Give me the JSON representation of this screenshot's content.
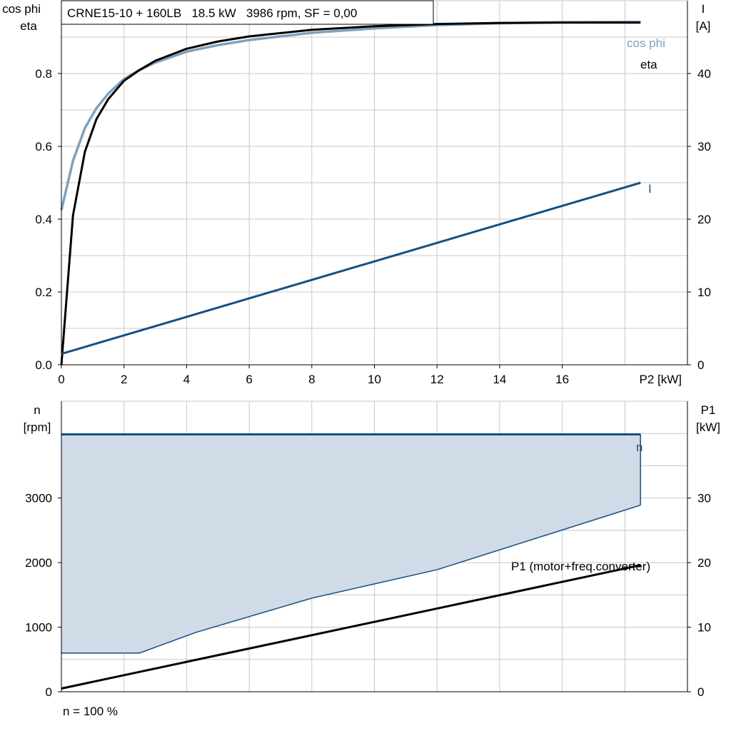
{
  "title": "CRNE15-10 + 160LB   18.5 kW   3986 rpm, SF = 0,00",
  "footer_note": "n = 100 %",
  "colors": {
    "eta": "#000000",
    "cos_phi": "#7ea1be",
    "current": "#174f82",
    "speed": "#174f82",
    "speed_fill": "#d0dbe7",
    "p1": "#000000",
    "grid": "#c8c8c8"
  },
  "chart_data": [
    {
      "type": "line",
      "xlabel": "P2 [kW]",
      "ylabel_left": [
        "cos phi",
        "eta"
      ],
      "ylabel_right": [
        "I",
        "[A]"
      ],
      "xlim": [
        0,
        20
      ],
      "ylim_left": [
        0,
        1.0
      ],
      "ylim_right": [
        0,
        50
      ],
      "x_ticks": [
        0,
        2,
        4,
        6,
        8,
        10,
        12,
        14,
        16
      ],
      "x_tick_labels": [
        "0",
        "2",
        "4",
        "6",
        "8",
        "10",
        "12",
        "14",
        "16"
      ],
      "y_left_ticks": [
        0,
        0.2,
        0.4,
        0.6,
        0.8
      ],
      "y_left_tick_labels": [
        "0.0",
        "0.2",
        "0.4",
        "0.6",
        "0.8"
      ],
      "y_right_ticks": [
        0,
        10,
        20,
        30,
        40
      ],
      "y_right_tick_labels": [
        "0",
        "10",
        "20",
        "30",
        "40"
      ],
      "grid": true,
      "series": [
        {
          "name": "eta",
          "axis": "left",
          "x": [
            0,
            0.37,
            0.75,
            1.12,
            1.5,
            2.0,
            2.5,
            3.0,
            4.0,
            5.0,
            6.0,
            8.0,
            10.0,
            12.0,
            14.0,
            16.0,
            18.5
          ],
          "y": [
            0.0,
            0.41,
            0.585,
            0.675,
            0.73,
            0.78,
            0.81,
            0.835,
            0.868,
            0.888,
            0.902,
            0.92,
            0.93,
            0.936,
            0.939,
            0.94,
            0.94
          ]
        },
        {
          "name": "cos phi",
          "axis": "left",
          "x": [
            0,
            0.37,
            0.75,
            1.12,
            1.5,
            2.0,
            2.5,
            3.0,
            4.0,
            5.0,
            6.0,
            8.0,
            10.0,
            12.0,
            14.0,
            16.0,
            18.5
          ],
          "y": [
            0.425,
            0.56,
            0.65,
            0.705,
            0.745,
            0.785,
            0.81,
            0.83,
            0.86,
            0.878,
            0.892,
            0.912,
            0.924,
            0.933,
            0.938,
            0.941,
            0.942
          ]
        },
        {
          "name": "I",
          "axis": "right",
          "x": [
            0,
            18.5
          ],
          "y": [
            1.5,
            25.0
          ]
        }
      ]
    },
    {
      "type": "area",
      "ylabel_left": [
        "n",
        "[rpm]"
      ],
      "ylabel_right": [
        "P1",
        "[kW]"
      ],
      "xlim": [
        0,
        20
      ],
      "ylim_left": [
        0,
        4500
      ],
      "ylim_right": [
        0,
        45
      ],
      "y_left_ticks": [
        0,
        1000,
        2000,
        3000
      ],
      "y_left_tick_labels": [
        "0",
        "1000",
        "2000",
        "3000"
      ],
      "y_right_ticks": [
        0,
        10,
        20,
        30
      ],
      "y_right_tick_labels": [
        "0",
        "10",
        "20",
        "30"
      ],
      "grid": true,
      "series": [
        {
          "name": "n",
          "axis": "left",
          "upper": {
            "x": [
              0,
              18.5,
              18.5
            ],
            "y": [
              3986,
              3986,
              2890
            ]
          },
          "lower": {
            "x": [
              0,
              2.5,
              4.3,
              8.0,
              12.0,
              18.5
            ],
            "y": [
              600,
              600,
              920,
              1450,
              1890,
              2890
            ]
          }
        },
        {
          "name": "P1 (motor+freq.converter)",
          "axis": "right",
          "x": [
            0,
            18.5
          ],
          "y": [
            0.5,
            19.6
          ]
        }
      ]
    }
  ]
}
